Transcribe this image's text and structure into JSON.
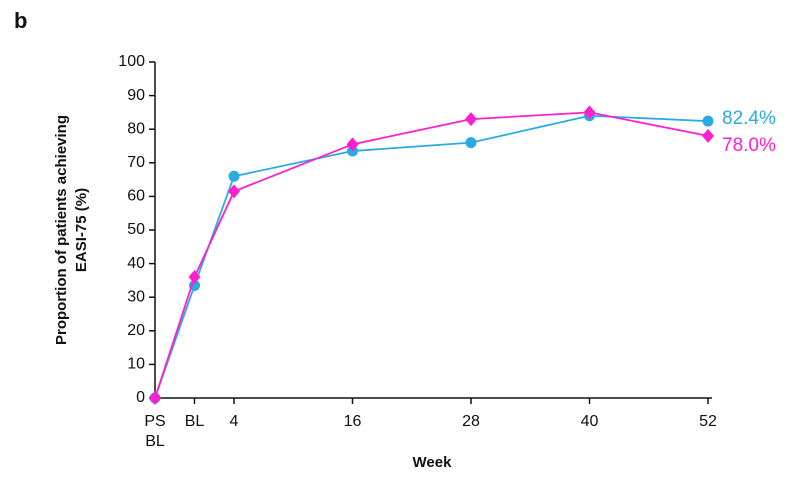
{
  "panel_label": "b",
  "chart_data": {
    "type": "line",
    "y_label_lines": [
      "Proportion of patients achieving",
      "EASI-75 (%)"
    ],
    "x_label": "Week",
    "x": [
      -4,
      0,
      4,
      16,
      28,
      40,
      52
    ],
    "xlim": [
      -4,
      52
    ],
    "xticks": [
      {
        "value": -4,
        "label": "PS BL"
      },
      {
        "value": 0,
        "label": "BL"
      },
      4,
      16,
      28,
      40,
      52
    ],
    "ylim": [
      0,
      100
    ],
    "yticks": [
      0,
      10,
      20,
      30,
      40,
      50,
      60,
      70,
      80,
      90,
      100
    ],
    "series": [
      {
        "color": "#29abe2",
        "marker": "circle",
        "values": [
          0,
          33.5,
          66,
          73.5,
          76,
          84,
          82.4
        ],
        "value_labels": [
          null,
          null,
          null,
          null,
          null,
          null,
          "82.4%"
        ]
      },
      {
        "color": "#ff1fd0",
        "marker": "diamond",
        "values": [
          0,
          36,
          61.5,
          75.5,
          83,
          85,
          78.0
        ],
        "value_labels": [
          null,
          null,
          null,
          null,
          null,
          null,
          "78.0%"
        ]
      }
    ]
  }
}
